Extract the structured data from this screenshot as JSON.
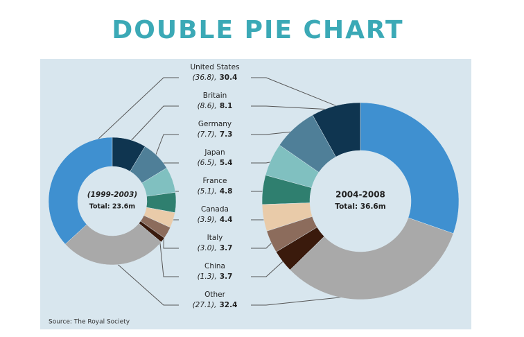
{
  "chart_data": {
    "type": "double-donut",
    "title": "DOUBLE PIE CHART",
    "source": "Source: The Royal Society",
    "categories": [
      "United States",
      "Britain",
      "Germany",
      "Japan",
      "France",
      "Canada",
      "Italy",
      "China",
      "Other"
    ],
    "colors": [
      "#3f90d0",
      "#0f3550",
      "#4f7f98",
      "#80c0c0",
      "#2f7f6f",
      "#e9cba9",
      "#8c6c5c",
      "#3a1a0c",
      "#a9a9a9"
    ],
    "series": [
      {
        "name": "(1999-2003)",
        "total": "Total: 23.6m",
        "direction": "clockwise",
        "values": [
          36.8,
          8.6,
          7.7,
          6.5,
          5.1,
          3.9,
          3.0,
          1.3,
          27.1
        ],
        "value_labels": [
          "(36.8),",
          "(8.6),",
          "(7.7),",
          "(6.5),",
          "(5.1),",
          "(3.9),",
          "(3.0),",
          "(1.3),",
          "(27.1),"
        ]
      },
      {
        "name": "2004-2008",
        "total": "Total: 36.6m",
        "direction": "counterclockwise",
        "values": [
          30.4,
          8.1,
          7.3,
          5.4,
          4.8,
          4.4,
          3.7,
          3.7,
          32.4
        ]
      }
    ]
  }
}
